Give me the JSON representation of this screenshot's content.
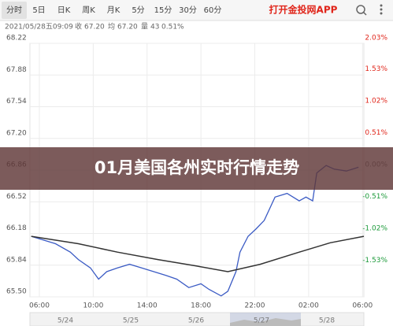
{
  "tabs": [
    "分时",
    "5日",
    "日K",
    "周K",
    "月K",
    "5分",
    "15分",
    "30分",
    "60分"
  ],
  "app_link": "打开金投网APP",
  "info": {
    "datetime": "2021/05/28五09:09",
    "close_label": "收",
    "close": "67.20",
    "avg_label": "均",
    "avg": "67.20",
    "volume_label": "量",
    "volume": "43",
    "change": "0.51%"
  },
  "chart_data": {
    "type": "line",
    "xlim": [
      -0.7,
      24.1
    ],
    "xticks": [
      {
        "value": 0,
        "label": "06:00"
      },
      {
        "value": 4,
        "label": "10:00"
      },
      {
        "value": 8,
        "label": "14:00"
      },
      {
        "value": 12,
        "label": "18:00"
      },
      {
        "value": 16,
        "label": "22:00"
      },
      {
        "value": 20,
        "label": "02:00"
      },
      {
        "value": 24,
        "label": "06:00"
      }
    ],
    "ylim": [
      65.5,
      68.22
    ],
    "yticks": [
      {
        "value": 68.22,
        "label": "68.22"
      },
      67.88,
      67.54,
      {
        "value": 67.2,
        "label": "67.20"
      },
      66.86,
      66.52,
      66.18,
      65.84,
      {
        "value": 65.5,
        "label": "65.50"
      }
    ],
    "y2lim": [
      -2.03,
      2.03
    ],
    "y2ticks": [
      {
        "value": 2.03,
        "label": "2.03%"
      },
      {
        "value": 1.53,
        "label": "1.53%"
      },
      {
        "value": 1.02,
        "label": "1.02%"
      },
      {
        "value": 0.51,
        "label": "0.51%"
      },
      {
        "value": 0,
        "label": "0.00%"
      },
      {
        "value": -0.51,
        "label": "-0.51%"
      },
      {
        "value": -1.02,
        "label": "-1.02%"
      },
      {
        "value": -1.53,
        "label": "-1.53%"
      }
    ],
    "grid": true,
    "series": [
      {
        "color": "#3b5bc4",
        "x": [
          -0.6,
          1.2,
          2.3,
          2.9,
          3.8,
          4.4,
          5.0,
          5.8,
          6.7,
          7.6,
          8.5,
          9.4,
          10.2,
          11.1,
          12.0,
          12.6,
          13.5,
          14.0,
          14.6,
          14.9,
          15.5,
          16.1,
          16.7,
          17.5,
          18.4,
          19.3,
          19.8,
          20.3,
          20.6,
          21.3,
          21.9,
          22.8,
          23.7
        ],
        "values": [
          66.15,
          66.07,
          65.98,
          65.9,
          65.81,
          65.69,
          65.77,
          65.81,
          65.85,
          65.81,
          65.77,
          65.73,
          65.69,
          65.6,
          65.64,
          65.58,
          65.51,
          65.56,
          65.77,
          65.98,
          66.15,
          66.23,
          66.32,
          66.57,
          66.61,
          66.53,
          66.57,
          66.53,
          66.83,
          66.91,
          66.87,
          66.85,
          66.89
        ]
      },
      {
        "color": "#333333",
        "x": [
          -0.6,
          2.9,
          5.8,
          8.8,
          11.7,
          14.0,
          16.4,
          19.3,
          21.6,
          24.1
        ],
        "values": [
          66.15,
          66.07,
          65.98,
          65.9,
          65.83,
          65.77,
          65.85,
          65.98,
          66.08,
          66.15
        ]
      }
    ]
  },
  "banner": {
    "title": "01月美国各州实时行情走势"
  },
  "navigator": {
    "dates": [
      "5/24",
      "5/25",
      "5/26",
      "5/27",
      "5/28"
    ]
  }
}
